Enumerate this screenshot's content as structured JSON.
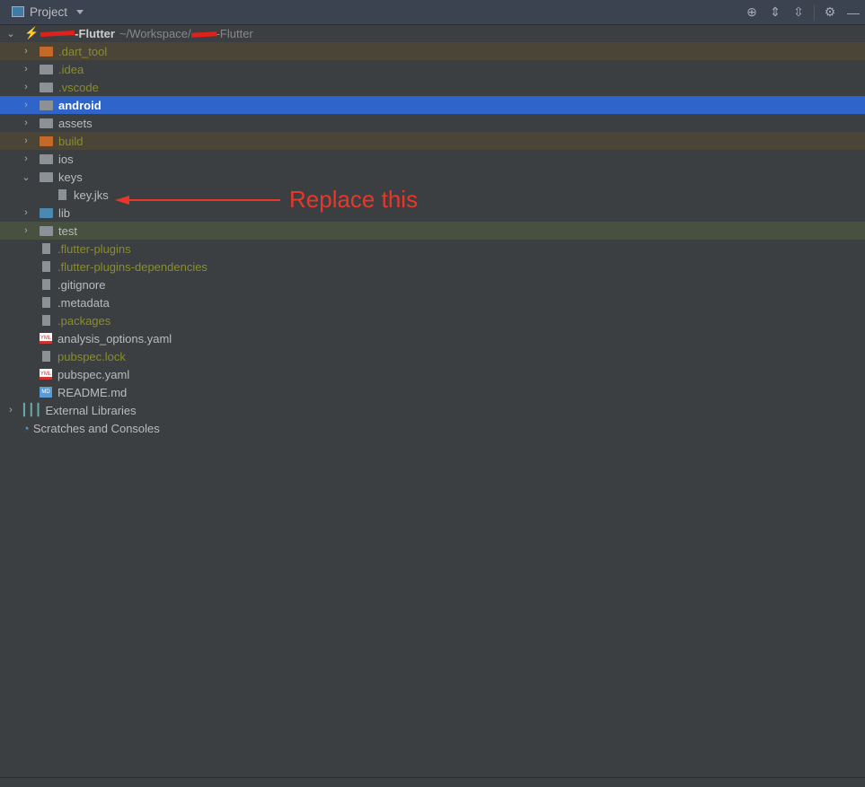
{
  "header": {
    "title": "Project",
    "tools": [
      "locate-icon",
      "expand-all-icon",
      "collapse-all-icon",
      "gear-icon",
      "minimize-icon"
    ]
  },
  "root": {
    "name": "-Flutter",
    "path": "~/Workspace/",
    "path_suffix": "-Flutter"
  },
  "items": [
    {
      "label": ".dart_tool",
      "type": "folder",
      "color": "orange",
      "style": "excluded"
    },
    {
      "label": ".idea",
      "type": "folder",
      "style": "ignored"
    },
    {
      "label": ".vscode",
      "type": "folder",
      "style": "ignored"
    },
    {
      "label": "android",
      "type": "folder",
      "style": "selected"
    },
    {
      "label": "assets",
      "type": "folder"
    },
    {
      "label": "build",
      "type": "folder",
      "color": "orange",
      "style": "excluded"
    },
    {
      "label": "ios",
      "type": "folder"
    },
    {
      "label": "keys",
      "type": "folder",
      "expanded": true
    },
    {
      "label": "key.jks",
      "type": "file",
      "depth": 2
    },
    {
      "label": "lib",
      "type": "folder",
      "color": "blue"
    },
    {
      "label": "test",
      "type": "folder",
      "style": "test"
    },
    {
      "label": ".flutter-plugins",
      "type": "file",
      "style": "ignored"
    },
    {
      "label": ".flutter-plugins-dependencies",
      "type": "file",
      "style": "ignored"
    },
    {
      "label": ".gitignore",
      "type": "file"
    },
    {
      "label": ".metadata",
      "type": "file"
    },
    {
      "label": ".packages",
      "type": "file",
      "style": "ignored"
    },
    {
      "label": "analysis_options.yaml",
      "type": "yml"
    },
    {
      "label": "pubspec.lock",
      "type": "file",
      "style": "ignored"
    },
    {
      "label": "pubspec.yaml",
      "type": "yml"
    },
    {
      "label": "README.md",
      "type": "md"
    }
  ],
  "bottom": [
    {
      "label": "External Libraries"
    },
    {
      "label": "Scratches and Consoles"
    }
  ],
  "annotation": {
    "text": "Replace this",
    "color": "#e8372a"
  },
  "colors": {
    "selection": "#2f65ca",
    "ignored": "#8b8d25",
    "background": "#3c3f41"
  }
}
